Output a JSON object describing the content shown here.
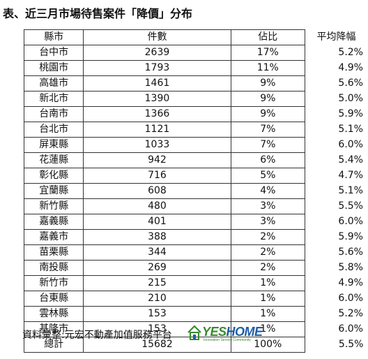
{
  "title": "表、近三月市場待售案件「降價」分布",
  "headers": {
    "county": "縣市",
    "count": "件數",
    "share": "佔比",
    "avg_drop": "平均降幅"
  },
  "rows": [
    {
      "county": "台中市",
      "count": "2639",
      "share": "17%",
      "avg_drop": "5.2%"
    },
    {
      "county": "桃園市",
      "count": "1793",
      "share": "11%",
      "avg_drop": "4.9%"
    },
    {
      "county": "高雄市",
      "count": "1461",
      "share": "9%",
      "avg_drop": "5.6%"
    },
    {
      "county": "新北市",
      "count": "1390",
      "share": "9%",
      "avg_drop": "5.0%"
    },
    {
      "county": "台南市",
      "count": "1366",
      "share": "9%",
      "avg_drop": "5.9%"
    },
    {
      "county": "台北市",
      "count": "1121",
      "share": "7%",
      "avg_drop": "5.1%"
    },
    {
      "county": "屏東縣",
      "count": "1033",
      "share": "7%",
      "avg_drop": "6.0%"
    },
    {
      "county": "花蓮縣",
      "count": "942",
      "share": "6%",
      "avg_drop": "5.4%"
    },
    {
      "county": "彰化縣",
      "count": "716",
      "share": "5%",
      "avg_drop": "4.7%"
    },
    {
      "county": "宜蘭縣",
      "count": "608",
      "share": "4%",
      "avg_drop": "5.1%"
    },
    {
      "county": "新竹縣",
      "count": "480",
      "share": "3%",
      "avg_drop": "5.5%"
    },
    {
      "county": "嘉義縣",
      "count": "401",
      "share": "3%",
      "avg_drop": "6.0%"
    },
    {
      "county": "嘉義市",
      "count": "388",
      "share": "2%",
      "avg_drop": "5.9%"
    },
    {
      "county": "苗栗縣",
      "count": "344",
      "share": "2%",
      "avg_drop": "5.6%"
    },
    {
      "county": "南投縣",
      "count": "269",
      "share": "2%",
      "avg_drop": "5.8%"
    },
    {
      "county": "新竹市",
      "count": "215",
      "share": "1%",
      "avg_drop": "4.9%"
    },
    {
      "county": "台東縣",
      "count": "210",
      "share": "1%",
      "avg_drop": "6.0%"
    },
    {
      "county": "雲林縣",
      "count": "153",
      "share": "1%",
      "avg_drop": "5.2%"
    },
    {
      "county": "基隆市",
      "count": "153",
      "share": "1%",
      "avg_drop": "6.0%"
    }
  ],
  "total": {
    "county": "總計",
    "count": "15682",
    "share": "100%",
    "avg_drop": "5.5%"
  },
  "footer": "資料彙整:元宏不動產加值服務平台",
  "logo": {
    "yes": "YES",
    "home": "HOME",
    "tagline": "Innovation Service Community",
    "icon": "house-logo-icon",
    "colors": {
      "green": "#3a8a2e",
      "blue": "#1d5fa8"
    }
  }
}
